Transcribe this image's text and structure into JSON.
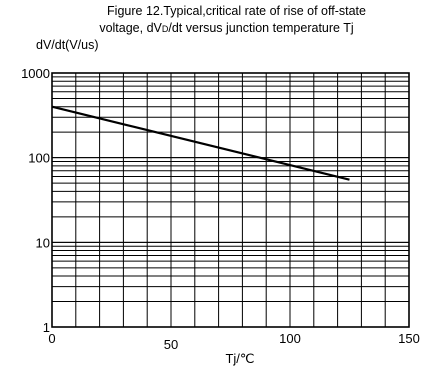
{
  "chart_data": {
    "type": "line",
    "title_line1": "Figure 12.Typical,critical rate of rise of off-state",
    "title_line2_prefix": "voltage, dV",
    "title_line2_sub": "D",
    "title_line2_suffix": "/dt versus junction temperature Tj",
    "ylabel": "dV/dt(V/us)",
    "xlabel": "Tj/℃",
    "xlim": [
      0,
      150
    ],
    "ylim": [
      1,
      1000
    ],
    "yscale": "log",
    "grid": true,
    "x_ticks": [
      0,
      50,
      100,
      150
    ],
    "x_tick_labels": [
      "0",
      "50",
      "100",
      "150"
    ],
    "y_ticks": [
      1,
      10,
      100,
      1000
    ],
    "y_tick_labels": [
      "1",
      "10",
      "100",
      "1000"
    ],
    "series": [
      {
        "x": [
          0,
          125
        ],
        "y": [
          400,
          55
        ]
      }
    ]
  }
}
